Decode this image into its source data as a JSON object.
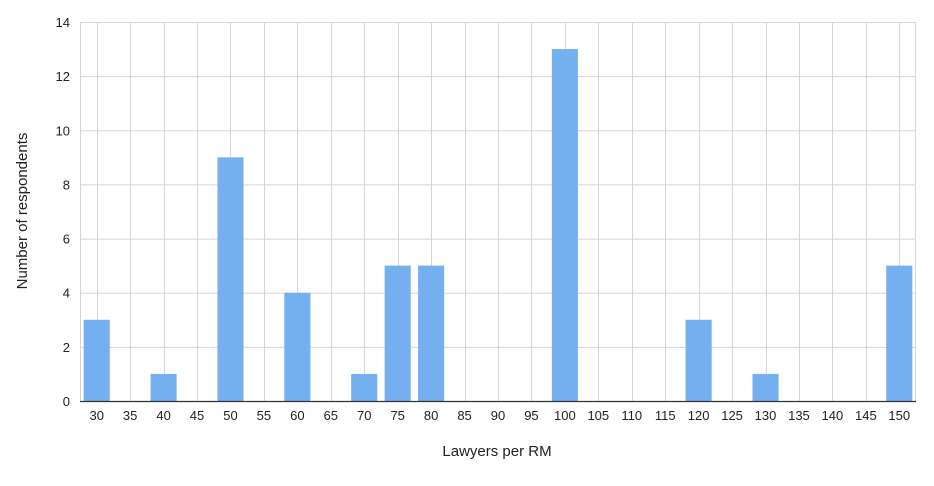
{
  "chart_data": {
    "type": "bar",
    "title": "",
    "xlabel": "Lawyers per RM",
    "ylabel": "Number of respondents",
    "ylim": [
      0,
      14
    ],
    "yticks": [
      0,
      2,
      4,
      6,
      8,
      10,
      12,
      14
    ],
    "grid": true,
    "legend": "none",
    "bar_color": "#74aff0",
    "grid_color": "#d6d6d6",
    "categories": [
      "30",
      "35",
      "40",
      "45",
      "50",
      "55",
      "60",
      "65",
      "70",
      "75",
      "80",
      "85",
      "90",
      "95",
      "100",
      "105",
      "110",
      "115",
      "120",
      "125",
      "130",
      "135",
      "140",
      "145",
      "150"
    ],
    "values": [
      3,
      0,
      1,
      0,
      9,
      0,
      4,
      0,
      1,
      5,
      5,
      0,
      0,
      0,
      13,
      0,
      0,
      0,
      3,
      0,
      1,
      0,
      0,
      0,
      5
    ]
  }
}
